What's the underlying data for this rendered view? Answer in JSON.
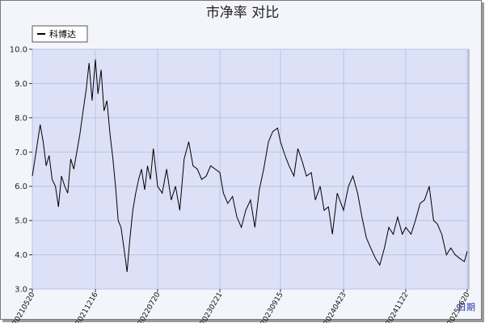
{
  "chart_data": {
    "type": "line",
    "title": "市净率  对比",
    "xlabel": "日期",
    "ylabel": "",
    "ylim": [
      3.0,
      10.0
    ],
    "yticks": [
      "3.0",
      "4.0",
      "5.0",
      "6.0",
      "7.0",
      "8.0",
      "9.0",
      "10.0"
    ],
    "xticks": [
      "20210520",
      "20211216",
      "20220720",
      "20230221",
      "20230915",
      "20240423",
      "20241122",
      "20250620"
    ],
    "grid": true,
    "legend": "top-left",
    "colors": {
      "plot_bg": "#dde1f7",
      "frame_bg": "#f4f5fb",
      "grid": "#b9c2e8",
      "line": "#000000"
    },
    "series": [
      {
        "name": "科博达",
        "x": [
          "2021-05-20",
          "2021-06-05",
          "2021-06-15",
          "2021-06-25",
          "2021-07-05",
          "2021-07-15",
          "2021-07-25",
          "2021-08-05",
          "2021-08-15",
          "2021-08-25",
          "2021-09-05",
          "2021-09-15",
          "2021-09-25",
          "2021-10-05",
          "2021-10-15",
          "2021-10-25",
          "2021-11-05",
          "2021-11-15",
          "2021-11-25",
          "2021-12-05",
          "2021-12-16",
          "2021-12-25",
          "2022-01-05",
          "2022-01-15",
          "2022-01-25",
          "2022-02-05",
          "2022-02-15",
          "2022-02-25",
          "2022-03-05",
          "2022-03-15",
          "2022-03-25",
          "2022-04-05",
          "2022-04-15",
          "2022-04-25",
          "2022-05-05",
          "2022-05-15",
          "2022-05-25",
          "2022-06-05",
          "2022-06-15",
          "2022-06-25",
          "2022-07-05",
          "2022-07-20",
          "2022-08-05",
          "2022-08-20",
          "2022-09-05",
          "2022-09-20",
          "2022-10-05",
          "2022-10-20",
          "2022-11-05",
          "2022-11-20",
          "2022-12-05",
          "2022-12-20",
          "2023-01-05",
          "2023-01-20",
          "2023-02-05",
          "2023-02-21",
          "2023-03-05",
          "2023-03-20",
          "2023-04-05",
          "2023-04-20",
          "2023-05-05",
          "2023-05-20",
          "2023-06-05",
          "2023-06-20",
          "2023-07-05",
          "2023-07-20",
          "2023-08-05",
          "2023-08-20",
          "2023-09-05",
          "2023-09-15",
          "2023-10-01",
          "2023-10-15",
          "2023-11-01",
          "2023-11-15",
          "2023-12-01",
          "2023-12-15",
          "2024-01-01",
          "2024-01-15",
          "2024-02-01",
          "2024-02-15",
          "2024-03-01",
          "2024-03-15",
          "2024-04-01",
          "2024-04-23",
          "2024-05-10",
          "2024-05-25",
          "2024-06-10",
          "2024-06-25",
          "2024-07-10",
          "2024-07-25",
          "2024-08-10",
          "2024-08-25",
          "2024-09-10",
          "2024-09-25",
          "2024-10-10",
          "2024-10-25",
          "2024-11-10",
          "2024-11-22",
          "2024-12-10",
          "2024-12-25",
          "2025-01-10",
          "2025-01-25",
          "2025-02-10",
          "2025-02-25",
          "2025-03-10",
          "2025-03-25",
          "2025-04-10",
          "2025-04-25",
          "2025-05-10",
          "2025-05-25",
          "2025-06-10",
          "2025-06-20"
        ],
        "values": [
          6.3,
          7.2,
          7.8,
          7.3,
          6.6,
          6.9,
          6.2,
          6.0,
          5.4,
          6.3,
          6.0,
          5.8,
          6.8,
          6.5,
          7.0,
          7.5,
          8.2,
          8.8,
          9.6,
          8.5,
          9.7,
          8.7,
          9.4,
          8.2,
          8.5,
          7.5,
          6.8,
          5.9,
          5.0,
          4.8,
          4.2,
          3.5,
          4.5,
          5.3,
          5.8,
          6.2,
          6.5,
          5.9,
          6.6,
          6.2,
          7.1,
          6.0,
          5.8,
          6.5,
          5.6,
          6.0,
          5.3,
          6.8,
          7.3,
          6.6,
          6.5,
          6.2,
          6.3,
          6.6,
          6.5,
          6.4,
          5.8,
          5.5,
          5.7,
          5.1,
          4.8,
          5.3,
          5.6,
          4.8,
          5.9,
          6.5,
          7.3,
          7.6,
          7.7,
          7.3,
          6.9,
          6.6,
          6.3,
          7.1,
          6.7,
          6.3,
          6.4,
          5.6,
          6.0,
          5.3,
          5.4,
          4.6,
          5.8,
          5.3,
          6.0,
          6.3,
          5.8,
          5.1,
          4.5,
          4.2,
          3.9,
          3.7,
          4.2,
          4.8,
          4.6,
          5.1,
          4.6,
          4.8,
          4.6,
          5.0,
          5.5,
          5.6,
          6.0,
          5.0,
          4.9,
          4.6,
          4.0,
          4.2,
          4.0,
          3.9,
          3.8,
          4.1
        ]
      }
    ]
  }
}
